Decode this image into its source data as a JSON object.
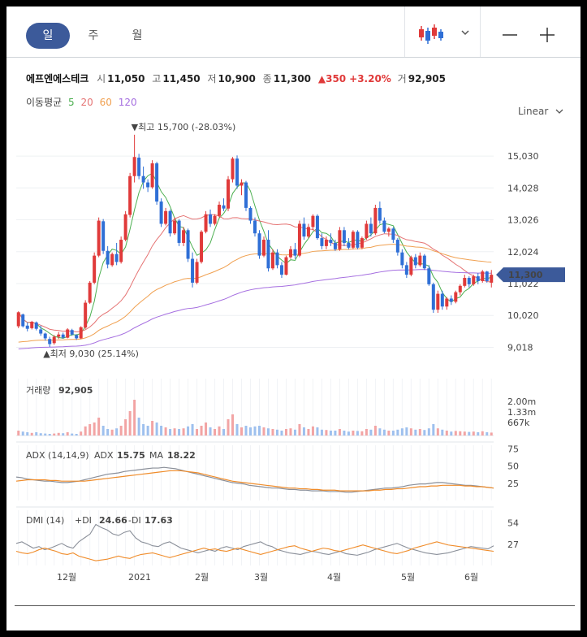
{
  "tabs": [
    {
      "label": "일",
      "active": true
    },
    {
      "label": "주",
      "active": false
    },
    {
      "label": "월",
      "active": false
    }
  ],
  "stock": {
    "name": "에프엔에스테크",
    "open_label": "시",
    "open": "11,050",
    "high_label": "고",
    "high": "11,450",
    "low_label": "저",
    "low": "10,900",
    "close_label": "종",
    "close": "11,300",
    "change": "▲350",
    "change_pct": "+3.20%",
    "volume_label": "거",
    "volume": "92,905"
  },
  "ma_legend": {
    "label": "이동평균",
    "periods": [
      {
        "value": "5",
        "color": "#4caf50"
      },
      {
        "value": "20",
        "color": "#e57373"
      },
      {
        "value": "60",
        "color": "#f0a050"
      },
      {
        "value": "120",
        "color": "#a56ee0"
      }
    ]
  },
  "scale_label": "Linear",
  "colors": {
    "up": "#e03a3a",
    "down": "#2f6fd6",
    "accent": "#3c5a9a"
  },
  "chart_data": [
    {
      "type": "candlestick",
      "title": "",
      "price_axis_ticks": [
        15030,
        14028,
        13026,
        12024,
        11022,
        10020,
        9018
      ],
      "price_axis_labels": [
        "15,030",
        "14,028",
        "13,026",
        "12,024",
        "11,022",
        "10,020",
        "9,018"
      ],
      "ylim": [
        8800,
        15900
      ],
      "x_labels": [
        "12월",
        "2021",
        "2월",
        "3월",
        "4월",
        "5월",
        "6월"
      ],
      "last_price_label": "11,300",
      "high_marker": "▼최고 15,700 (-28.03%)",
      "low_marker": "▲최저 9,030 (25.14%)",
      "candles": [
        [
          9680,
          10150,
          9620,
          10120
        ],
        [
          10050,
          10080,
          9640,
          9680
        ],
        [
          9700,
          9800,
          9520,
          9600
        ],
        [
          9620,
          9850,
          9580,
          9820
        ],
        [
          9800,
          9830,
          9550,
          9600
        ],
        [
          9580,
          9700,
          9380,
          9450
        ],
        [
          9450,
          9480,
          9230,
          9300
        ],
        [
          9280,
          9350,
          9030,
          9120
        ],
        [
          9150,
          9400,
          9100,
          9350
        ],
        [
          9350,
          9500,
          9280,
          9420
        ],
        [
          9420,
          9480,
          9290,
          9320
        ],
        [
          9320,
          9620,
          9300,
          9580
        ],
        [
          9560,
          9600,
          9380,
          9420
        ],
        [
          9400,
          9430,
          9250,
          9300
        ],
        [
          9300,
          9680,
          9280,
          9650
        ],
        [
          9640,
          10500,
          9600,
          10420
        ],
        [
          10420,
          11100,
          10380,
          11050
        ],
        [
          11050,
          12000,
          11000,
          11900
        ],
        [
          11900,
          13100,
          11850,
          13000
        ],
        [
          12980,
          13050,
          11950,
          12050
        ],
        [
          12050,
          12200,
          11500,
          11620
        ],
        [
          11600,
          12000,
          11550,
          11950
        ],
        [
          11950,
          12300,
          11600,
          11700
        ],
        [
          11700,
          12500,
          11650,
          12400
        ],
        [
          12400,
          13300,
          12350,
          13200
        ],
        [
          13180,
          14500,
          13100,
          14400
        ],
        [
          14400,
          15700,
          14200,
          15000
        ],
        [
          14980,
          15100,
          14300,
          14400
        ],
        [
          14400,
          14700,
          14000,
          14200
        ],
        [
          14200,
          14300,
          13900,
          14050
        ],
        [
          14050,
          14900,
          14000,
          14800
        ],
        [
          14800,
          14850,
          13500,
          13600
        ],
        [
          13600,
          13700,
          12800,
          12900
        ],
        [
          12900,
          13400,
          12850,
          13300
        ],
        [
          13300,
          13350,
          12500,
          12600
        ],
        [
          12600,
          13100,
          12550,
          13000
        ],
        [
          13000,
          13050,
          12200,
          12300
        ],
        [
          12300,
          12800,
          12200,
          12700
        ],
        [
          12700,
          12750,
          11700,
          11800
        ],
        [
          11800,
          12000,
          10900,
          11050
        ],
        [
          11050,
          11800,
          11000,
          11700
        ],
        [
          11700,
          12700,
          11650,
          12650
        ],
        [
          12650,
          13300,
          12600,
          13200
        ],
        [
          13200,
          13350,
          12800,
          12900
        ],
        [
          12900,
          13200,
          12850,
          13150
        ],
        [
          13150,
          13600,
          13100,
          13500
        ],
        [
          13480,
          13700,
          13300,
          13380
        ],
        [
          13380,
          14400,
          13300,
          14300
        ],
        [
          14300,
          15000,
          14200,
          14950
        ],
        [
          14950,
          15050,
          14000,
          14100
        ],
        [
          14100,
          14300,
          13800,
          14200
        ],
        [
          14200,
          14250,
          13300,
          13400
        ],
        [
          13400,
          13450,
          12900,
          13000
        ],
        [
          13000,
          13100,
          12500,
          12600
        ],
        [
          12600,
          12700,
          11800,
          11900
        ],
        [
          11900,
          12500,
          11850,
          12400
        ],
        [
          12400,
          12700,
          11400,
          11500
        ],
        [
          11500,
          12100,
          11450,
          12000
        ],
        [
          12000,
          12100,
          11500,
          11600
        ],
        [
          11600,
          11700,
          11200,
          11300
        ],
        [
          11300,
          11900,
          11280,
          11850
        ],
        [
          11850,
          12200,
          11800,
          12100
        ],
        [
          12100,
          12300,
          11800,
          11900
        ],
        [
          11900,
          13000,
          11850,
          12900
        ],
        [
          12900,
          13100,
          12400,
          12500
        ],
        [
          12500,
          12900,
          12450,
          12800
        ],
        [
          12800,
          13200,
          12700,
          13150
        ],
        [
          13150,
          13200,
          12400,
          12450
        ],
        [
          12450,
          12600,
          12100,
          12200
        ],
        [
          12200,
          12500,
          12100,
          12400
        ],
        [
          12400,
          12600,
          12200,
          12300
        ],
        [
          12300,
          12400,
          12050,
          12100
        ],
        [
          12100,
          12800,
          12050,
          12700
        ],
        [
          12700,
          12800,
          12200,
          12300
        ],
        [
          12300,
          12450,
          12100,
          12150
        ],
        [
          12150,
          12700,
          12100,
          12650
        ],
        [
          12650,
          12700,
          12100,
          12150
        ],
        [
          12150,
          12500,
          12100,
          12450
        ],
        [
          12450,
          13000,
          12400,
          12900
        ],
        [
          12900,
          13100,
          12500,
          12600
        ],
        [
          12600,
          13500,
          12550,
          13400
        ],
        [
          13400,
          13600,
          12900,
          13000
        ],
        [
          13000,
          13100,
          12600,
          12650
        ],
        [
          12650,
          12800,
          12500,
          12750
        ],
        [
          12750,
          12800,
          12300,
          12400
        ],
        [
          12400,
          12450,
          11900,
          12000
        ],
        [
          12000,
          12100,
          11500,
          11600
        ],
        [
          11600,
          11700,
          11200,
          11300
        ],
        [
          11300,
          11900,
          11250,
          11850
        ],
        [
          11850,
          11950,
          11500,
          11600
        ],
        [
          11600,
          12000,
          11550,
          11900
        ],
        [
          11900,
          11950,
          11450,
          11500
        ],
        [
          11500,
          11600,
          10950,
          11000
        ],
        [
          11000,
          11050,
          10100,
          10200
        ],
        [
          10200,
          10800,
          10100,
          10700
        ],
        [
          10700,
          10800,
          10200,
          10300
        ],
        [
          10300,
          10600,
          10200,
          10550
        ],
        [
          10550,
          10650,
          10350,
          10450
        ],
        [
          10450,
          10800,
          10400,
          10750
        ],
        [
          10750,
          11000,
          10650,
          10950
        ],
        [
          10950,
          11300,
          10900,
          11200
        ],
        [
          11200,
          11250,
          10900,
          11000
        ],
        [
          11000,
          11300,
          10950,
          11250
        ],
        [
          11250,
          11350,
          11000,
          11100
        ],
        [
          11100,
          11450,
          11050,
          11400
        ],
        [
          11400,
          11420,
          11050,
          11100
        ],
        [
          11050,
          11450,
          10900,
          11300
        ]
      ],
      "volumes": [
        0.15,
        0.12,
        0.1,
        0.08,
        0.1,
        0.07,
        0.06,
        0.05,
        0.06,
        0.08,
        0.07,
        0.1,
        0.06,
        0.05,
        0.12,
        0.28,
        0.35,
        0.4,
        0.55,
        0.3,
        0.2,
        0.18,
        0.22,
        0.3,
        0.5,
        0.75,
        1.1,
        0.55,
        0.35,
        0.3,
        0.45,
        0.4,
        0.3,
        0.25,
        0.2,
        0.22,
        0.2,
        0.22,
        0.28,
        0.35,
        0.2,
        0.3,
        0.4,
        0.25,
        0.2,
        0.28,
        0.2,
        0.5,
        0.65,
        0.35,
        0.25,
        0.3,
        0.25,
        0.28,
        0.3,
        0.25,
        0.22,
        0.2,
        0.18,
        0.15,
        0.2,
        0.22,
        0.18,
        0.35,
        0.25,
        0.2,
        0.28,
        0.25,
        0.18,
        0.17,
        0.15,
        0.15,
        0.2,
        0.15,
        0.12,
        0.15,
        0.14,
        0.13,
        0.2,
        0.18,
        0.3,
        0.22,
        0.18,
        0.15,
        0.15,
        0.18,
        0.22,
        0.25,
        0.22,
        0.18,
        0.2,
        0.17,
        0.22,
        0.35,
        0.22,
        0.18,
        0.15,
        0.12,
        0.14,
        0.13,
        0.12,
        0.11,
        0.12,
        0.1,
        0.13,
        0.1,
        0.09
      ]
    },
    {
      "type": "bar",
      "title": "거래량",
      "value_label": "92,905",
      "y_tick_labels": [
        "2.00m",
        "1.33m",
        "667k"
      ],
      "series": [
        {
          "name": "거래량",
          "values_ref": "volumes"
        }
      ]
    },
    {
      "type": "line",
      "title": "ADX (14,14,9)",
      "legend": [
        {
          "name": "ADX",
          "value": "15.75",
          "color": "#8a8f99"
        },
        {
          "name": "MA",
          "value": "18.22",
          "color": "#f08c2a"
        }
      ],
      "y_tick_labels": [
        "75",
        "50",
        "25"
      ],
      "ylim": [
        0,
        80
      ],
      "adx": [
        34,
        33,
        31,
        30,
        29,
        28,
        28,
        27,
        26,
        26,
        27,
        28,
        30,
        32,
        34,
        36,
        38,
        39,
        40,
        42,
        43,
        44,
        45,
        46,
        47,
        47,
        48,
        47,
        46,
        44,
        42,
        40,
        38,
        36,
        34,
        32,
        30,
        28,
        26,
        25,
        24,
        22,
        21,
        20,
        19,
        18,
        18,
        17,
        16,
        16,
        15,
        15,
        14,
        14,
        14,
        13,
        13,
        13,
        12,
        12,
        13,
        14,
        15,
        16,
        17,
        18,
        18,
        19,
        20,
        22,
        23,
        24,
        24,
        25,
        26,
        26,
        25,
        24,
        23,
        22,
        22,
        21,
        20,
        19,
        18
      ],
      "ma": [
        28,
        29,
        30,
        30,
        30,
        30,
        29,
        29,
        28,
        28,
        28,
        28,
        28,
        29,
        30,
        31,
        32,
        33,
        34,
        35,
        36,
        37,
        38,
        39,
        40,
        41,
        42,
        43,
        43,
        43,
        42,
        41,
        40,
        38,
        36,
        34,
        32,
        30,
        28,
        27,
        26,
        25,
        24,
        23,
        22,
        21,
        20,
        19,
        18,
        18,
        17,
        17,
        16,
        16,
        15,
        15,
        15,
        14,
        14,
        14,
        14,
        14,
        14,
        15,
        15,
        16,
        16,
        17,
        17,
        18,
        19,
        20,
        20,
        21,
        21,
        22,
        22,
        22,
        22,
        21,
        21,
        20,
        20,
        19,
        18
      ]
    },
    {
      "type": "line",
      "title": "DMI (14)",
      "legend": [
        {
          "name": "+DI",
          "value": "24.66",
          "color": "#8a8f99"
        },
        {
          "name": "-DI",
          "value": "17.63",
          "color": "#f08c2a"
        }
      ],
      "y_tick_labels": [
        "54",
        "27"
      ],
      "ylim": [
        0,
        70
      ],
      "pdi": [
        28,
        30,
        26,
        22,
        24,
        20,
        22,
        25,
        28,
        24,
        22,
        30,
        35,
        40,
        52,
        48,
        45,
        40,
        38,
        42,
        44,
        35,
        30,
        28,
        25,
        24,
        28,
        30,
        26,
        22,
        20,
        18,
        16,
        18,
        20,
        18,
        22,
        24,
        22,
        20,
        24,
        26,
        28,
        30,
        26,
        24,
        20,
        18,
        16,
        15,
        14,
        16,
        18,
        17,
        15,
        14,
        16,
        18,
        15,
        14,
        13,
        15,
        17,
        20,
        22,
        24,
        26,
        28,
        25,
        22,
        20,
        18,
        16,
        15,
        14,
        15,
        16,
        18,
        20,
        22,
        24,
        23,
        22,
        21,
        25
      ],
      "mdi": [
        18,
        16,
        15,
        17,
        20,
        22,
        20,
        18,
        15,
        14,
        16,
        12,
        10,
        8,
        6,
        7,
        8,
        10,
        12,
        10,
        9,
        12,
        14,
        15,
        16,
        14,
        12,
        10,
        12,
        14,
        16,
        18,
        20,
        22,
        20,
        21,
        19,
        18,
        20,
        22,
        20,
        18,
        16,
        14,
        16,
        18,
        20,
        22,
        24,
        25,
        22,
        20,
        18,
        20,
        22,
        21,
        19,
        18,
        20,
        22,
        24,
        26,
        24,
        22,
        20,
        18,
        16,
        15,
        17,
        19,
        22,
        24,
        26,
        28,
        30,
        28,
        26,
        25,
        24,
        23,
        22,
        21,
        20,
        19,
        18
      ]
    }
  ]
}
